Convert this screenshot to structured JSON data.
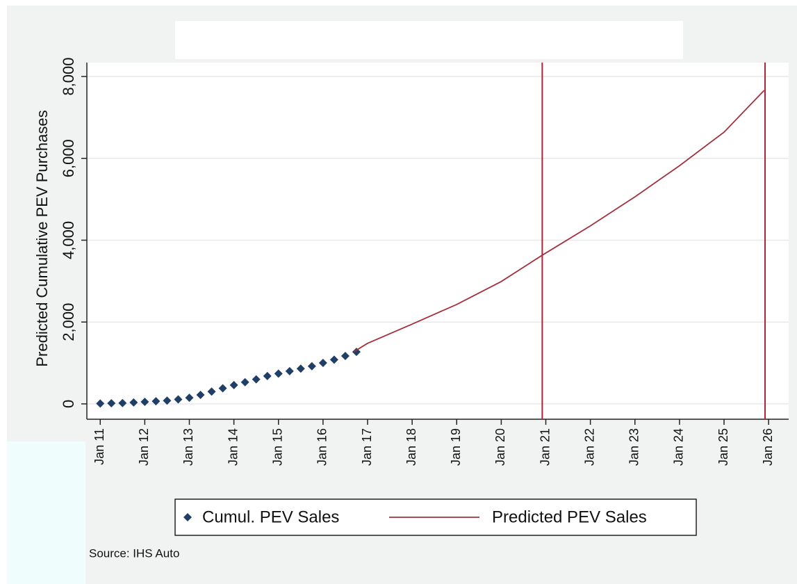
{
  "chart_data": {
    "type": "scatter-line",
    "ylabel": "Predicted Cumulative PEV Purchases",
    "source": "Source: IHS Auto",
    "xlim": [
      2010.7,
      2026.45
    ],
    "ylim": [
      -375,
      8340
    ],
    "yticks": [
      0,
      {
        "value": 2000,
        "label": "2,000"
      },
      {
        "value": 4000,
        "label": "4,000"
      },
      {
        "value": 6000,
        "label": "6,000"
      },
      {
        "value": 8000,
        "label": "8,000"
      }
    ],
    "xticks": [
      {
        "value": 2011,
        "label": "Jan 11"
      },
      {
        "value": 2012,
        "label": "Jan 12"
      },
      {
        "value": 2013,
        "label": "Jan 13"
      },
      {
        "value": 2014,
        "label": "Jan 14"
      },
      {
        "value": 2015,
        "label": "Jan 15"
      },
      {
        "value": 2016,
        "label": "Jan 16"
      },
      {
        "value": 2017,
        "label": "Jan 17"
      },
      {
        "value": 2018,
        "label": "Jan 18"
      },
      {
        "value": 2019,
        "label": "Jan 19"
      },
      {
        "value": 2020,
        "label": "Jan 20"
      },
      {
        "value": 2021,
        "label": "Jan 21"
      },
      {
        "value": 2022,
        "label": "Jan 22"
      },
      {
        "value": 2023,
        "label": "Jan 23"
      },
      {
        "value": 2024,
        "label": "Jan 24"
      },
      {
        "value": 2025,
        "label": "Jan 25"
      },
      {
        "value": 2026,
        "label": "Jan 26"
      }
    ],
    "grid": true,
    "vlines": {
      "color": "#b22234",
      "x": [
        2020.92,
        2025.92
      ]
    },
    "series": [
      {
        "name": "Cumul. PEV Sales",
        "kind": "scatter",
        "color": "#1f3f66",
        "x": [
          2011,
          2011.25,
          2011.5,
          2011.75,
          2012,
          2012.25,
          2012.5,
          2012.75,
          2013,
          2013.25,
          2013.5,
          2013.75,
          2014,
          2014.25,
          2014.5,
          2014.75,
          2015,
          2015.25,
          2015.5,
          2015.75,
          2016,
          2016.25,
          2016.5,
          2016.75
        ],
        "values": [
          10,
          15,
          20,
          35,
          50,
          65,
          80,
          110,
          150,
          220,
          300,
          380,
          460,
          530,
          600,
          680,
          740,
          800,
          860,
          920,
          1000,
          1080,
          1170,
          1270
        ]
      },
      {
        "name": "Predicted PEV Sales",
        "kind": "line",
        "color": "#a3303c",
        "x": [
          2016.7,
          2017,
          2018,
          2019,
          2020,
          2020.92,
          2022,
          2023,
          2024,
          2025,
          2025.9
        ],
        "values": [
          1280,
          1480,
          1950,
          2430,
          2990,
          3633,
          4350,
          5060,
          5820,
          6640,
          7660
        ]
      }
    ]
  }
}
